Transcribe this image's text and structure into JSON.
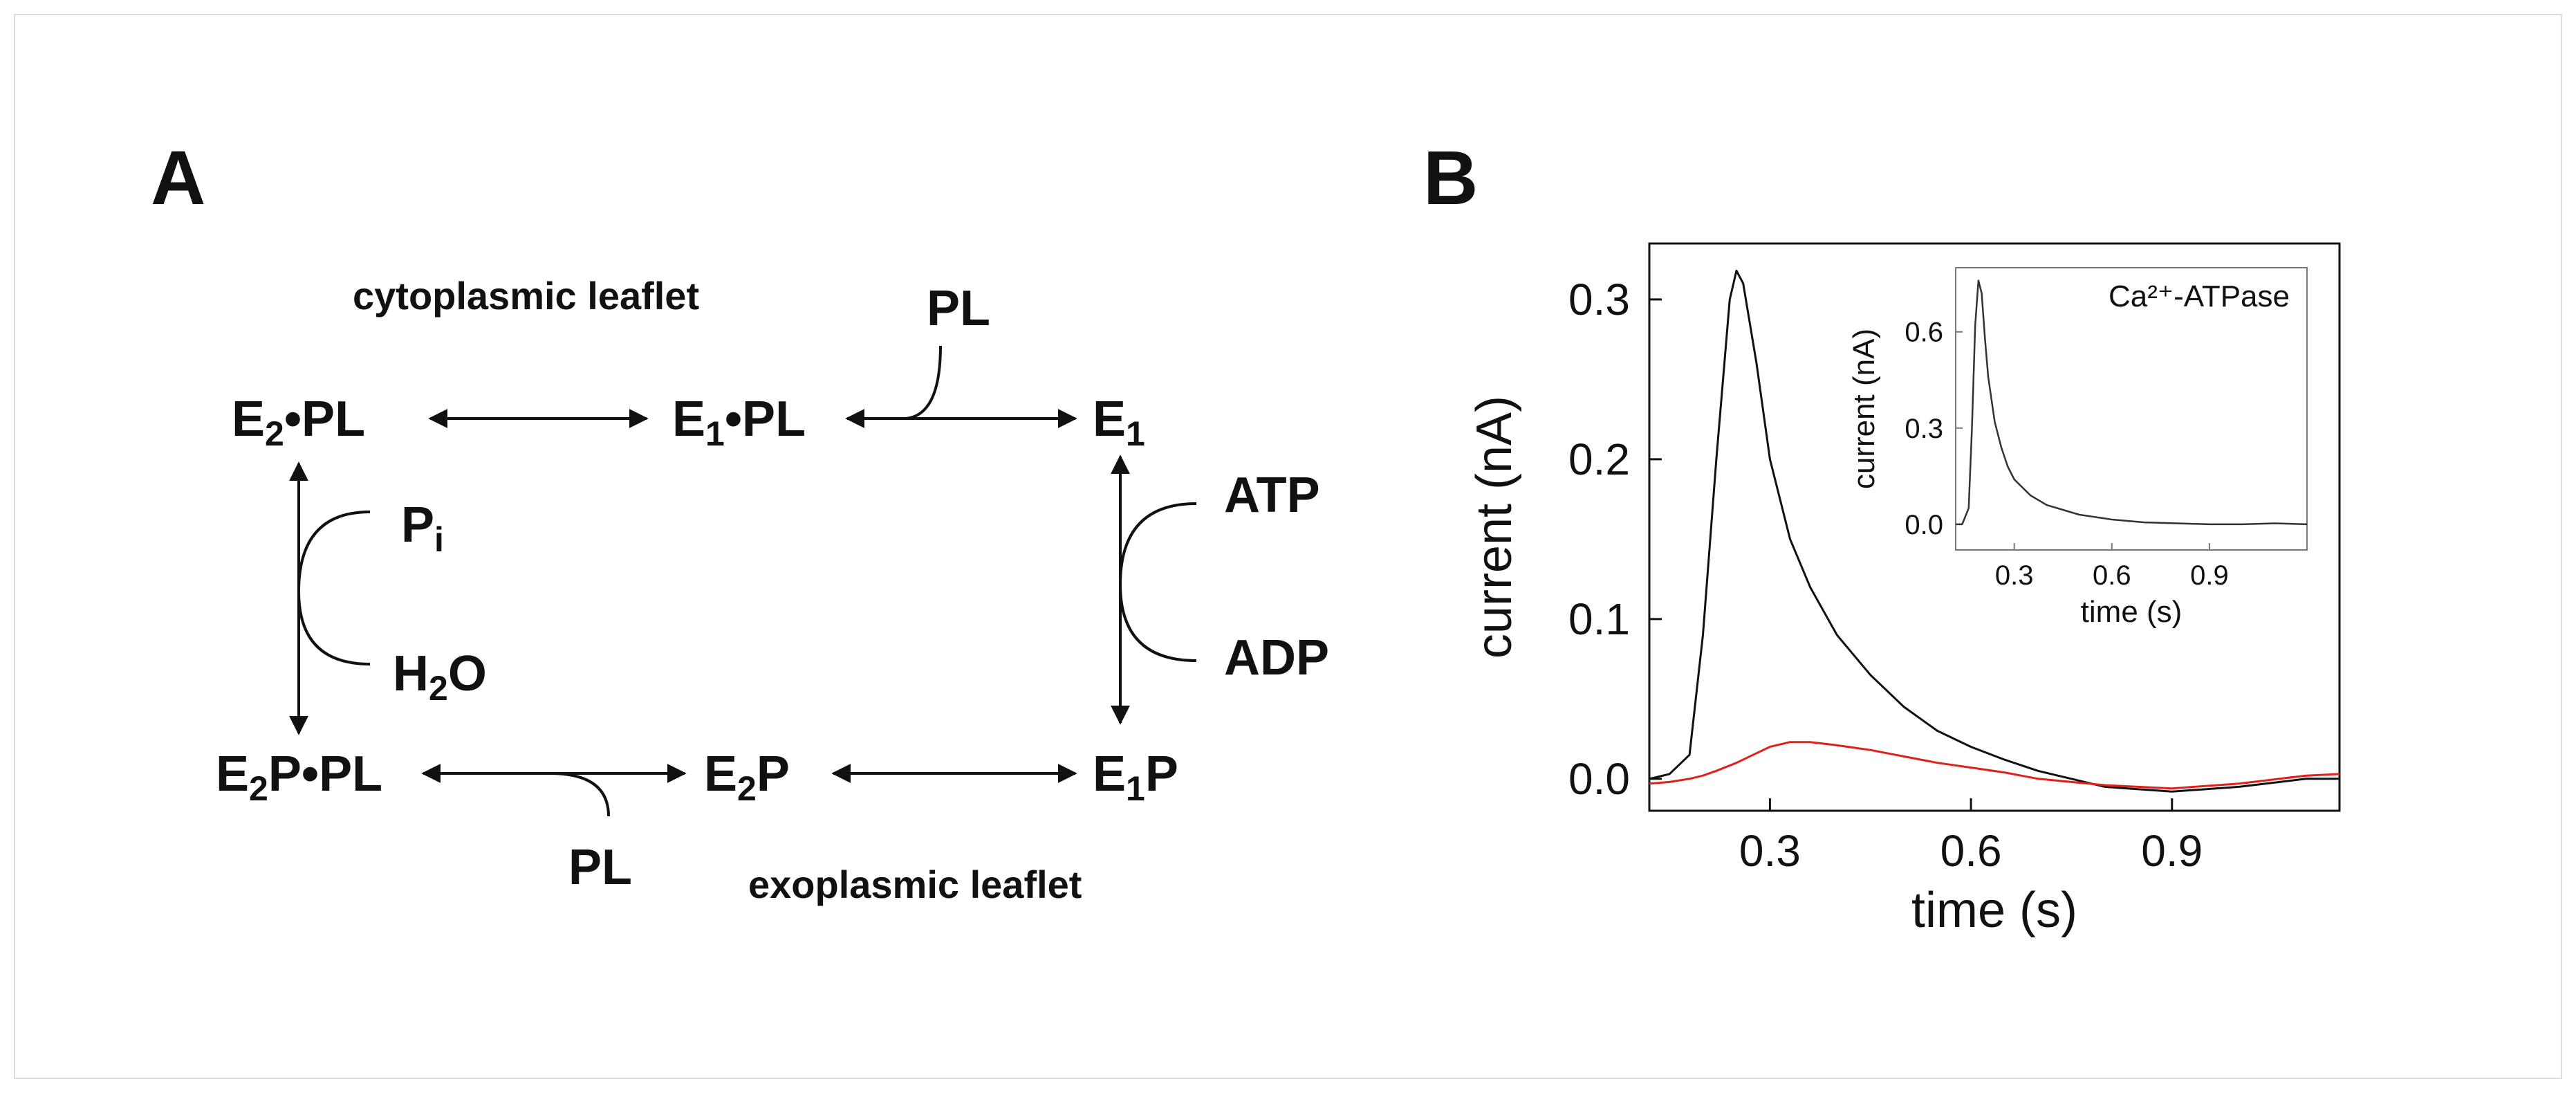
{
  "panel_a": {
    "letter": "A",
    "cytoplasmic_label": "cytoplasmic leaflet",
    "exoplasmic_label": "exoplasmic leaflet",
    "top_left": {
      "base": "E",
      "sub": "2",
      "rest": "•PL"
    },
    "top_mid": {
      "base": "E",
      "sub": "1",
      "rest": "•PL"
    },
    "top_right": {
      "base": "E",
      "sub": "1",
      "rest": ""
    },
    "bot_left": {
      "base": "E",
      "sub": "2",
      "rest": "P•PL"
    },
    "bot_mid": {
      "base": "E",
      "sub": "2",
      "rest": "P"
    },
    "bot_right": {
      "base": "E",
      "sub": "1",
      "rest": "P"
    },
    "pl_top": "PL",
    "pl_bottom": "PL",
    "pi": {
      "base": "P",
      "sub": "i"
    },
    "water": {
      "base": "H",
      "sub": "2",
      "rest": "O"
    },
    "atp": "ATP",
    "adp": "ADP"
  },
  "panel_b": {
    "letter": "B",
    "chart_data": [
      {
        "type": "line",
        "xlabel": "time (s)",
        "ylabel": "current (nA)",
        "xlim": [
          0.12,
          1.15
        ],
        "ylim": [
          -0.02,
          0.335
        ],
        "xticks": [
          0.3,
          0.6,
          0.9
        ],
        "xtick_labels": [
          "0.3",
          "0.6",
          "0.9"
        ],
        "yticks": [
          0.0,
          0.1,
          0.2,
          0.3
        ],
        "ytick_labels": [
          "0.0",
          "0.1",
          "0.2",
          "0.3"
        ],
        "series": [
          {
            "color": "#111111",
            "x": [
              0.12,
              0.15,
              0.18,
              0.2,
              0.22,
              0.24,
              0.25,
              0.26,
              0.28,
              0.3,
              0.33,
              0.36,
              0.4,
              0.45,
              0.5,
              0.55,
              0.6,
              0.65,
              0.7,
              0.8,
              0.9,
              1.0,
              1.1,
              1.15
            ],
            "y": [
              0.0,
              0.003,
              0.015,
              0.09,
              0.2,
              0.3,
              0.318,
              0.31,
              0.26,
              0.2,
              0.15,
              0.12,
              0.09,
              0.065,
              0.045,
              0.03,
              0.02,
              0.012,
              0.005,
              -0.005,
              -0.008,
              -0.005,
              0.0,
              0.0
            ]
          },
          {
            "color": "#e0201b",
            "x": [
              0.12,
              0.15,
              0.18,
              0.2,
              0.22,
              0.25,
              0.28,
              0.3,
              0.33,
              0.36,
              0.4,
              0.45,
              0.5,
              0.55,
              0.6,
              0.65,
              0.7,
              0.8,
              0.9,
              1.0,
              1.1,
              1.15
            ],
            "y": [
              -0.003,
              -0.002,
              0.0,
              0.002,
              0.005,
              0.01,
              0.016,
              0.02,
              0.023,
              0.023,
              0.021,
              0.018,
              0.014,
              0.01,
              0.007,
              0.004,
              0.0,
              -0.004,
              -0.006,
              -0.003,
              0.002,
              0.003
            ]
          }
        ]
      },
      {
        "type": "line",
        "title": "Ca²⁺-ATPase",
        "xlabel": "time (s)",
        "ylabel": "current (nA)",
        "xlim": [
          0.12,
          1.2
        ],
        "ylim": [
          -0.08,
          0.8
        ],
        "xticks": [
          0.3,
          0.6,
          0.9
        ],
        "xtick_labels": [
          "0.3",
          "0.6",
          "0.9"
        ],
        "yticks": [
          0.0,
          0.3,
          0.6
        ],
        "ytick_labels": [
          "0.0",
          "0.3",
          "0.6"
        ],
        "series": [
          {
            "color": "#333333",
            "x": [
              0.12,
              0.14,
              0.16,
              0.17,
              0.18,
              0.19,
              0.2,
              0.21,
              0.22,
              0.24,
              0.26,
              0.28,
              0.3,
              0.35,
              0.4,
              0.5,
              0.6,
              0.7,
              0.8,
              0.9,
              1.0,
              1.1,
              1.2
            ],
            "y": [
              0.0,
              0.0,
              0.05,
              0.3,
              0.62,
              0.76,
              0.72,
              0.58,
              0.46,
              0.32,
              0.24,
              0.18,
              0.14,
              0.09,
              0.06,
              0.03,
              0.015,
              0.006,
              0.003,
              0.0,
              0.0,
              0.003,
              0.0
            ]
          }
        ]
      }
    ]
  }
}
